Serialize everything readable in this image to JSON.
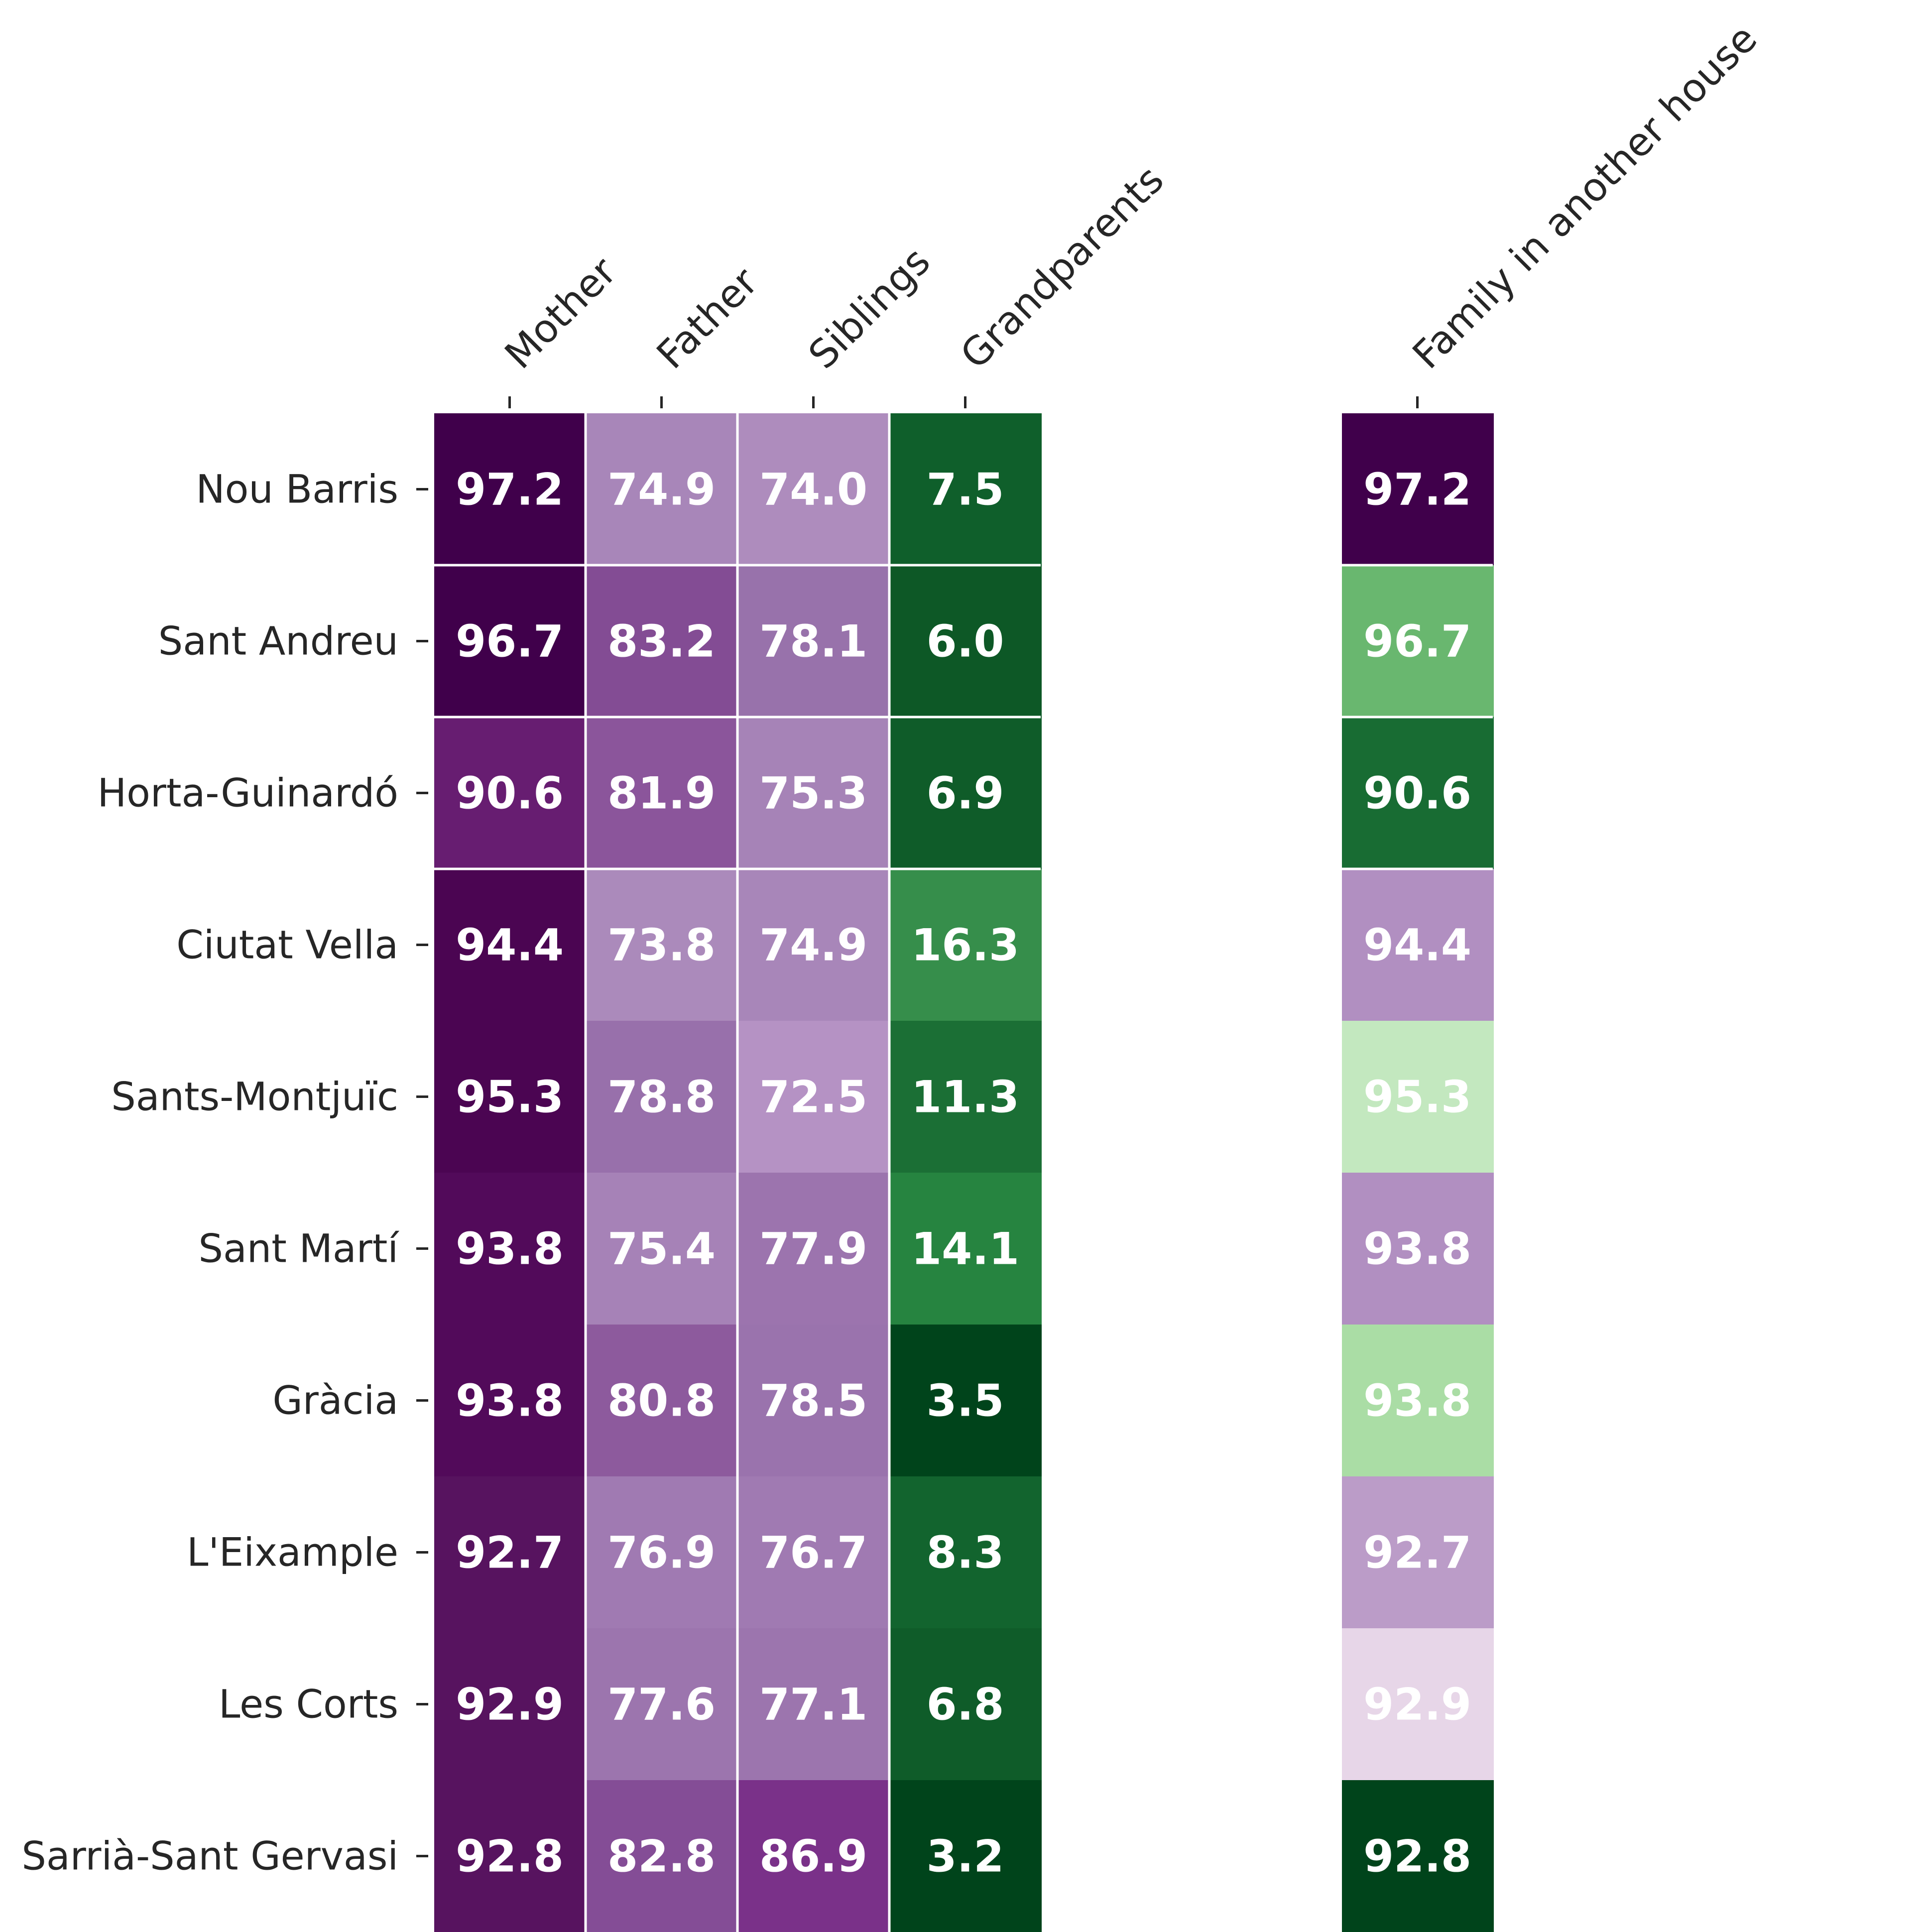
{
  "chart_data": {
    "type": "heatmap",
    "columns": [
      "Mother",
      "Father",
      "Siblings",
      "Grandparents",
      "Family in another house"
    ],
    "rows": [
      "Nou Barris",
      "Sant Andreu",
      "Horta-Guinardó",
      "Ciutat Vella",
      "Sants-Montjuïc",
      "Sant Martí",
      "Gràcia",
      "L'Eixample",
      "Les Corts",
      "Sarrià-Sant Gervasi"
    ],
    "values": [
      [
        97.2,
        74.9,
        74.0,
        7.5,
        97.2
      ],
      [
        96.7,
        83.2,
        78.1,
        6.0,
        96.7
      ],
      [
        90.6,
        81.9,
        75.3,
        6.9,
        90.6
      ],
      [
        94.4,
        73.8,
        74.9,
        16.3,
        94.4
      ],
      [
        95.3,
        78.8,
        72.5,
        11.3,
        95.3
      ],
      [
        93.8,
        75.4,
        77.9,
        14.1,
        93.8
      ],
      [
        93.8,
        80.8,
        78.5,
        3.5,
        93.8
      ],
      [
        92.7,
        76.9,
        76.7,
        8.3,
        92.7
      ],
      [
        92.9,
        77.6,
        77.1,
        6.8,
        92.9
      ],
      [
        92.8,
        82.8,
        86.9,
        3.2,
        92.8
      ]
    ],
    "cell_colors": [
      [
        "#40004b",
        "#a886b9",
        "#ae8cbd",
        "#0f5f2b",
        "#40004b"
      ],
      [
        "#40004b",
        "#834c94",
        "#9872ab",
        "#0d5826",
        "#69b76f"
      ],
      [
        "#671d71",
        "#8b559b",
        "#a683b7",
        "#0f5c29",
        "#186c33"
      ],
      [
        "#4b0552",
        "#ab8abb",
        "#a886b9",
        "#368e4b",
        "#b18fc1"
      ],
      [
        "#4b0552",
        "#9870ab",
        "#b592c4",
        "#1b6f35",
        "#c3e8bf"
      ],
      [
        "#520a5a",
        "#a682b7",
        "#9c74ae",
        "#268440",
        "#b18fc1"
      ],
      [
        "#520a5a",
        "#8d5a9d",
        "#9a73ad",
        "#00441b",
        "#aadda5"
      ],
      [
        "#57135f",
        "#a07ab2",
        "#a07ab2",
        "#12642e",
        "#bb9cc8"
      ],
      [
        "#57135f",
        "#9c75ae",
        "#9c75ae",
        "#0f5c29",
        "#e7d6e8"
      ],
      [
        "#57135f",
        "#844d96",
        "#7a3189",
        "#00441b",
        "#00441b"
      ]
    ],
    "colormap": "PRGn (purple high, green low)",
    "value_label_color": "#ffffff",
    "separator_color": "#ffffff",
    "title": "",
    "xlabel": "",
    "ylabel": ""
  }
}
